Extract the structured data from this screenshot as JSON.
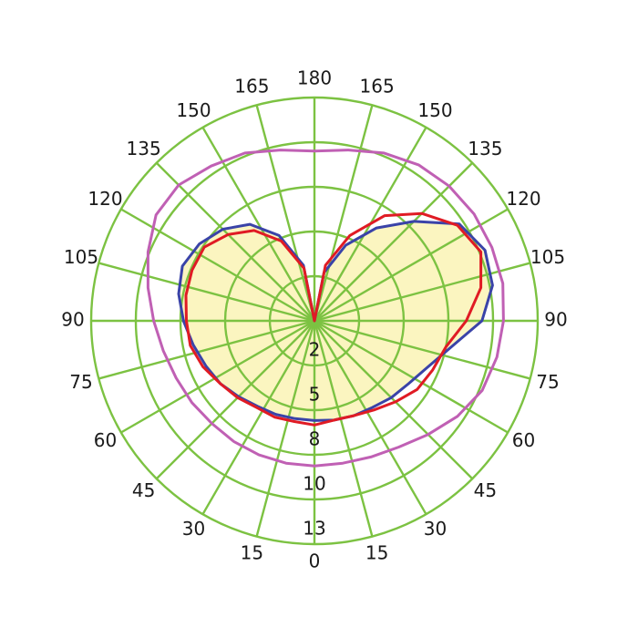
{
  "chart_data": {
    "type": "polar",
    "title": "",
    "angle_labels": [
      "0",
      "15",
      "30",
      "45",
      "60",
      "75",
      "90",
      "105",
      "120",
      "135",
      "150",
      "165",
      "180",
      "165",
      "150",
      "135",
      "120",
      "105",
      "90",
      "75",
      "60",
      "45",
      "30",
      "15"
    ],
    "radial_ticks": [
      "2",
      "5",
      "8",
      "10",
      "13"
    ],
    "radial_tick_values": [
      2,
      5,
      8,
      10,
      13
    ],
    "radial_max": 13,
    "angle_step_deg": 15,
    "grid": true,
    "colors": {
      "grid": "#7cc242",
      "fill": "#fbf5c0",
      "series": [
        "#3a43a8",
        "#e01b24",
        "#c060b4"
      ]
    },
    "series": [
      {
        "color": "#3a43a8",
        "filled": true,
        "r": [
          5.7,
          5.8,
          5.9,
          6.0,
          6.3,
          6.6,
          7.2,
          8.2,
          9.5,
          10.2,
          10.4,
          9.8,
          8.3,
          6.5,
          4.5,
          2.3,
          0.0,
          2.8,
          5.2,
          6.8,
          7.7,
          8.2,
          8.4,
          8.2,
          7.8,
          7.3,
          6.9,
          6.6,
          6.2,
          5.9,
          5.8,
          5.7
        ]
      },
      {
        "color": "#e01b24",
        "filled": false,
        "r": [
          6.0,
          5.8,
          5.9,
          6.2,
          6.7,
          7.3,
          7.6,
          8.0,
          8.8,
          9.6,
          10.1,
          9.7,
          8.8,
          7.5,
          5.2,
          2.8,
          0.0,
          2.6,
          4.8,
          6.3,
          7.2,
          7.9,
          7.9,
          7.8,
          7.6,
          7.5,
          7.1,
          6.6,
          6.3,
          6.0,
          6.0,
          5.9
        ]
      },
      {
        "color": "#c060b4",
        "filled": false,
        "r": [
          8.5,
          8.5,
          8.6,
          8.8,
          9.2,
          9.7,
          10.2,
          10.5,
          10.7,
          10.9,
          10.9,
          10.9,
          10.8,
          10.6,
          10.2,
          9.8,
          9.6,
          9.8,
          10.2,
          10.5,
          10.9,
          10.8,
          10.1,
          9.6,
          9.2,
          8.9,
          8.7,
          8.6,
          8.5,
          8.5,
          8.5,
          8.5
        ]
      }
    ]
  }
}
